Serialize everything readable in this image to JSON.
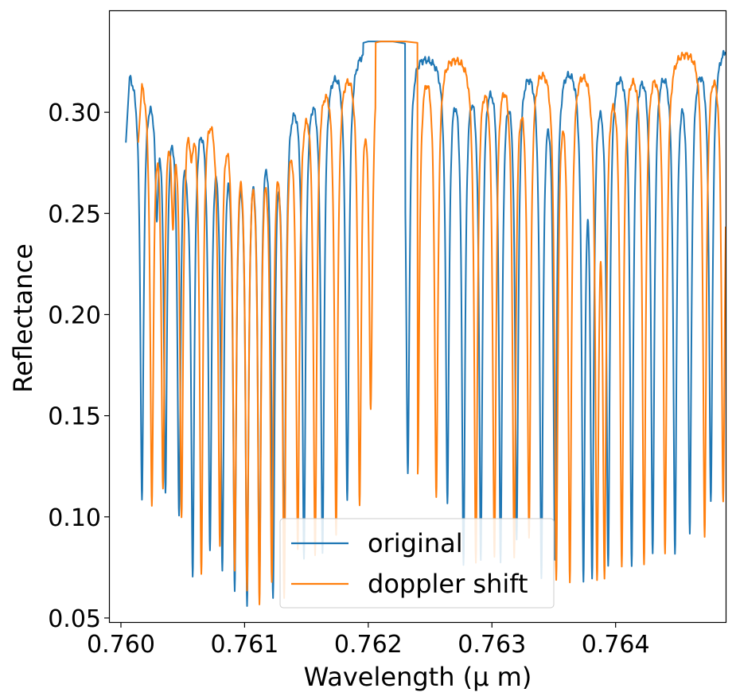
{
  "chart_data": {
    "type": "line",
    "title": "",
    "xlabel": "Wavelength (μ m)",
    "ylabel": "Reflectance",
    "xlim": [
      0.75991,
      0.76489
    ],
    "ylim": [
      0.048,
      0.35
    ],
    "x_ticks": [
      {
        "value": 0.76,
        "label": "0.760"
      },
      {
        "value": 0.761,
        "label": "0.761"
      },
      {
        "value": 0.762,
        "label": "0.762"
      },
      {
        "value": 0.763,
        "label": "0.763"
      },
      {
        "value": 0.764,
        "label": "0.764"
      }
    ],
    "y_ticks": [
      {
        "value": 0.05,
        "label": "0.05"
      },
      {
        "value": 0.1,
        "label": "0.10"
      },
      {
        "value": 0.15,
        "label": "0.15"
      },
      {
        "value": 0.2,
        "label": "0.20"
      },
      {
        "value": 0.25,
        "label": "0.25"
      },
      {
        "value": 0.3,
        "label": "0.30"
      }
    ],
    "grid": false,
    "legend_position": "bottom-center",
    "series": [
      {
        "name": "original",
        "color": "#1f77b4",
        "x_start": 0.76004,
        "x_end": 0.76489,
        "start_value": 0.285,
        "continuum": [
          [
            0.7601,
            0.325
          ],
          [
            0.7606,
            0.318
          ],
          [
            0.761,
            0.312
          ],
          [
            0.7614,
            0.322
          ],
          [
            0.7617,
            0.33
          ],
          [
            0.762,
            0.335
          ],
          [
            0.7622,
            0.335
          ],
          [
            0.7625,
            0.332
          ],
          [
            0.763,
            0.332
          ],
          [
            0.764,
            0.334
          ],
          [
            0.7649,
            0.336
          ]
        ],
        "gap": [
          0.76196,
          0.7623
        ],
        "absorption_lines": [
          [
            0.76017,
            0.109
          ],
          [
            0.76029,
            0.262
          ],
          [
            0.76036,
            0.117
          ],
          [
            0.76047,
            0.104
          ],
          [
            0.76054,
            0.297
          ],
          [
            0.76058,
            0.074
          ],
          [
            0.76072,
            0.088
          ],
          [
            0.76082,
            0.079
          ],
          [
            0.76092,
            0.069
          ],
          [
            0.76102,
            0.061
          ],
          [
            0.76112,
            0.072
          ],
          [
            0.76123,
            0.062
          ],
          [
            0.76132,
            0.088
          ],
          [
            0.76148,
            0.082
          ],
          [
            0.76163,
            0.082
          ],
          [
            0.76183,
            0.108
          ],
          [
            0.76232,
            0.122
          ],
          [
            0.76264,
            0.11
          ],
          [
            0.76277,
            0.079
          ],
          [
            0.76291,
            0.081
          ],
          [
            0.76307,
            0.081
          ],
          [
            0.7632,
            0.093
          ],
          [
            0.7634,
            0.073
          ],
          [
            0.76351,
            0.08
          ],
          [
            0.76374,
            0.072
          ],
          [
            0.76381,
            0.073
          ],
          [
            0.76394,
            0.077
          ],
          [
            0.76413,
            0.078
          ],
          [
            0.7643,
            0.083
          ],
          [
            0.76448,
            0.083
          ],
          [
            0.7646,
            0.094
          ],
          [
            0.76477,
            0.107
          ]
        ]
      },
      {
        "name": "doppler shift",
        "color": "#ff7f0e",
        "x_start": 0.76014,
        "x_end": 0.76489,
        "start_value": 0.285,
        "continuum": [
          [
            0.7602,
            0.325
          ],
          [
            0.7607,
            0.318
          ],
          [
            0.7611,
            0.312
          ],
          [
            0.7615,
            0.324
          ],
          [
            0.7618,
            0.331
          ],
          [
            0.7621,
            0.335
          ],
          [
            0.7623,
            0.335
          ],
          [
            0.7626,
            0.333
          ],
          [
            0.763,
            0.332
          ],
          [
            0.764,
            0.334
          ],
          [
            0.7649,
            0.336
          ]
        ],
        "gap": [
          0.76206,
          0.7624
        ],
        "absorption_lines": [
          [
            0.76025,
            0.109
          ],
          [
            0.76034,
            0.117
          ],
          [
            0.76042,
            0.262
          ],
          [
            0.76049,
            0.104
          ],
          [
            0.76057,
            0.295
          ],
          [
            0.76065,
            0.074
          ],
          [
            0.7608,
            0.088
          ],
          [
            0.76092,
            0.079
          ],
          [
            0.76102,
            0.069
          ],
          [
            0.76112,
            0.061
          ],
          [
            0.76122,
            0.072
          ],
          [
            0.76132,
            0.063
          ],
          [
            0.76143,
            0.087
          ],
          [
            0.76157,
            0.082
          ],
          [
            0.76174,
            0.094
          ],
          [
            0.76193,
            0.108
          ],
          [
            0.76202,
            0.157
          ],
          [
            0.7624,
            0.123
          ],
          [
            0.76255,
            0.11
          ],
          [
            0.76287,
            0.079
          ],
          [
            0.76302,
            0.081
          ],
          [
            0.76318,
            0.081
          ],
          [
            0.7633,
            0.094
          ],
          [
            0.76352,
            0.071
          ],
          [
            0.76363,
            0.07
          ],
          [
            0.76385,
            0.072
          ],
          [
            0.76391,
            0.073
          ],
          [
            0.76405,
            0.077
          ],
          [
            0.76423,
            0.078
          ],
          [
            0.7644,
            0.083
          ],
          [
            0.76472,
            0.093
          ],
          [
            0.76487,
            0.107
          ]
        ]
      }
    ]
  }
}
